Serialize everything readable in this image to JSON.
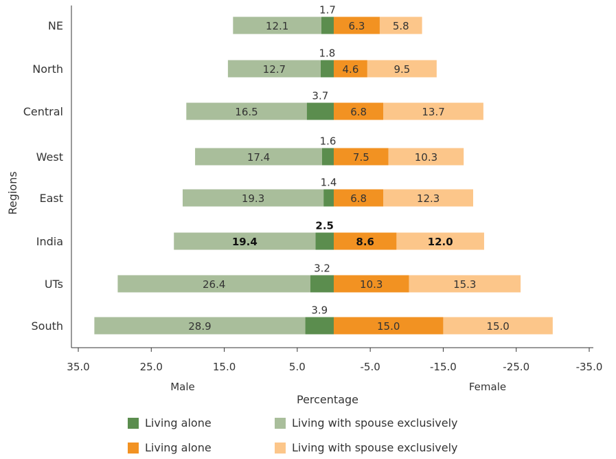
{
  "chart_data": {
    "type": "bar",
    "orientation": "horizontal",
    "stacked": "diverging",
    "categories": [
      "NE",
      "North",
      "Central",
      "West",
      "East",
      "India",
      "UTs",
      "South"
    ],
    "emphasized_category": "India",
    "male": {
      "living_alone": [
        1.7,
        1.8,
        3.7,
        1.6,
        1.4,
        2.5,
        3.2,
        3.9
      ],
      "living_with_spouse": [
        12.1,
        12.7,
        16.5,
        17.4,
        19.3,
        19.4,
        26.4,
        28.9
      ]
    },
    "female": {
      "living_alone": [
        6.3,
        4.6,
        6.8,
        7.5,
        6.8,
        8.6,
        10.3,
        15.0
      ],
      "living_with_spouse": [
        5.8,
        9.5,
        13.7,
        10.3,
        12.3,
        12.0,
        15.3,
        15.0
      ]
    },
    "label_text": {
      "male_living_alone": [
        "1.7",
        "1.8",
        "3.7",
        "1.6",
        "1.4",
        "2.5",
        "3.2",
        "3.9"
      ],
      "male_living_with_spouse": [
        "12.1",
        "12.7",
        "16.5",
        "17.4",
        "19.3",
        "19.4",
        "26.4",
        "28.9"
      ],
      "female_living_alone": [
        "6.3",
        "4.6",
        "6.8",
        "7.5",
        "6.8",
        "8.6",
        "10.3",
        "15.0"
      ],
      "female_living_with_spouse": [
        "5.8",
        "9.5",
        "13.7",
        "10.3",
        "12.3",
        "12.0",
        "15.3",
        "15.0"
      ]
    },
    "x_ticks": [
      "35.0",
      "25.0",
      "15.0",
      "5.0",
      "-5.0",
      "-15.0",
      "-25.0",
      "-35.0"
    ],
    "xlim": [
      35,
      -35
    ],
    "xlabel": "Percentage",
    "ylabel": "Regions",
    "male_label": "Male",
    "female_label": "Female",
    "legend": [
      {
        "label": "Living alone",
        "color": "#5b8d4e"
      },
      {
        "label": "Living with spouse exclusively",
        "color": "#a9be9b"
      },
      {
        "label": "Living alone",
        "color": "#f29222"
      },
      {
        "label": "Living with spouse exclusively",
        "color": "#fcc68a"
      }
    ],
    "legend_placement": "bottom",
    "grid": false,
    "colors": {
      "male_living_alone": "#5b8d4e",
      "male_living_with_spouse": "#a9be9b",
      "female_living_alone": "#f29222",
      "female_living_with_spouse": "#fcc68a"
    }
  }
}
